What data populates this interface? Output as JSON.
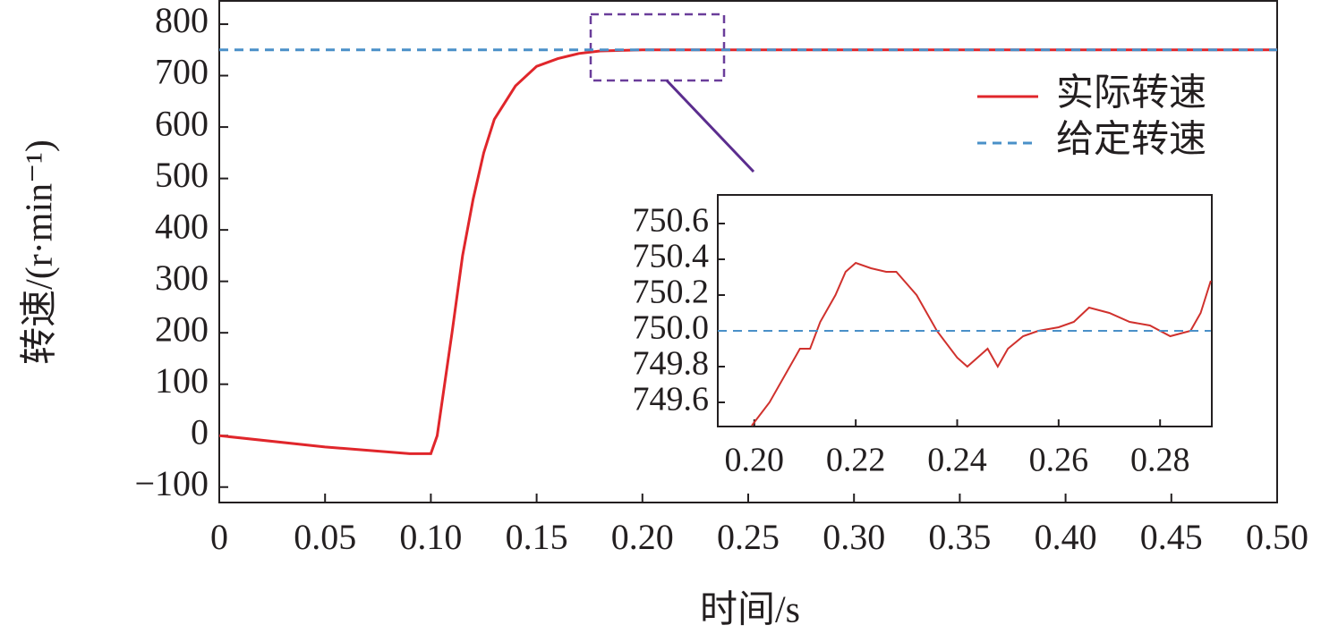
{
  "chart_data": [
    {
      "type": "line",
      "xlabel": "时间/s",
      "ylabel": "转速/(r·min⁻¹)",
      "xlim": [
        0,
        0.5
      ],
      "ylim": [
        -130,
        847
      ],
      "xticks": [
        0,
        0.05,
        {
          "value": 0.1,
          "label": "0.10"
        },
        0.15,
        {
          "value": 0.2,
          "label": "0.20"
        },
        0.25,
        {
          "value": 0.3,
          "label": "0.30"
        },
        0.35,
        {
          "value": 0.4,
          "label": "0.40"
        },
        0.45,
        {
          "value": 0.5,
          "label": "0.50"
        }
      ],
      "yticks": [
        {
          "value": -100,
          "label": "−100"
        },
        0,
        100,
        200,
        300,
        400,
        500,
        600,
        700,
        800
      ],
      "grid": false,
      "legend": "upper right",
      "series": [
        {
          "name": "实际转速",
          "color": "#e0262b",
          "style": "solid",
          "x": [
            0,
            0.05,
            0.09,
            0.1,
            0.103,
            0.11,
            0.115,
            0.12,
            0.125,
            0.13,
            0.14,
            0.15,
            0.16,
            0.17,
            0.18,
            0.2,
            0.5
          ],
          "values": [
            0,
            -22,
            -35,
            -35,
            0,
            200,
            350,
            460,
            550,
            615,
            680,
            718,
            733,
            743,
            748,
            750,
            750
          ]
        },
        {
          "name": "给定转速",
          "color": "#4a90c8",
          "style": "dashed",
          "x": [
            0,
            0.5
          ],
          "values": [
            750,
            750
          ]
        }
      ]
    },
    {
      "type": "line",
      "xlim": [
        0.1928,
        0.2902
      ],
      "ylim": [
        749.465,
        750.76
      ],
      "xticks": [
        {
          "value": 0.2,
          "label": "0.20"
        },
        0.22,
        0.24,
        0.26,
        0.28
      ],
      "yticks": [
        749.6,
        749.8,
        {
          "value": 750,
          "label": "750.0"
        },
        750.2,
        750.4,
        750.6
      ],
      "grid": false,
      "series": [
        {
          "color": "#d0312d",
          "style": "solid",
          "x": [
            0.1995,
            0.203,
            0.207,
            0.209,
            0.211,
            0.213,
            0.216,
            0.218,
            0.22,
            0.223,
            0.226,
            0.228,
            0.232,
            0.236,
            0.24,
            0.242,
            0.244,
            0.246,
            0.248,
            0.25,
            0.253,
            0.256,
            0.26,
            0.263,
            0.266,
            0.27,
            0.274,
            0.278,
            0.282,
            0.286,
            0.288,
            0.29
          ],
          "values": [
            749.47,
            749.6,
            749.8,
            749.9,
            749.9,
            750.05,
            750.2,
            750.33,
            750.38,
            750.35,
            750.33,
            750.33,
            750.2,
            750.0,
            749.85,
            749.8,
            749.85,
            749.9,
            749.8,
            749.9,
            749.97,
            750.0,
            750.02,
            750.05,
            750.13,
            750.1,
            750.05,
            750.03,
            749.97,
            750.0,
            750.1,
            750.28
          ]
        },
        {
          "color": "#4a90c8",
          "style": "dashed",
          "x": [
            0.1928,
            0.29
          ],
          "values": [
            750,
            750
          ]
        }
      ]
    }
  ]
}
